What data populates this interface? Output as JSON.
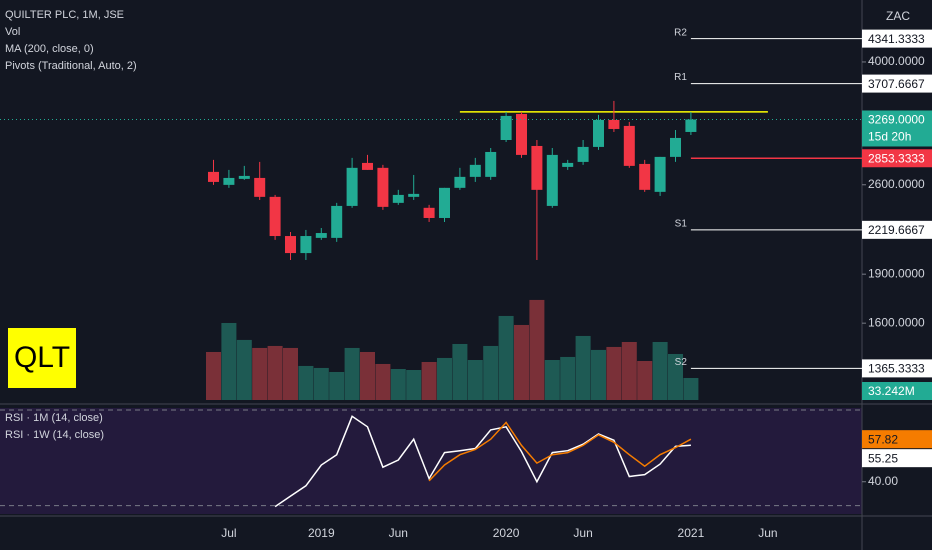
{
  "chart_data": {
    "type": "candlestick",
    "title": "QUILTER PLC, 1M, JSE",
    "indicators": [
      "Vol",
      "MA (200, close, 0)",
      "Pivots (Traditional, Auto, 2)"
    ],
    "symbol_badge": "QLT",
    "currency": "ZAC",
    "categories": [
      null,
      "Jul",
      null,
      null,
      null,
      null,
      null,
      "2019",
      null,
      null,
      null,
      null,
      "Jun",
      null,
      null,
      null,
      null,
      null,
      null,
      "2020",
      null,
      null,
      null,
      null,
      "Jun",
      null,
      null,
      null,
      null,
      null,
      null,
      "2021",
      null,
      null,
      null,
      null,
      "Jun"
    ],
    "open": [
      2720,
      2599,
      2654,
      2663,
      2492,
      2172,
      2046,
      2158,
      2158,
      2414,
      2807,
      2759,
      2440,
      2492,
      2398,
      2314,
      2572,
      2673,
      2673,
      3042,
      3333,
      2979,
      2414,
      2768,
      2817,
      2969,
      3264,
      3196,
      2797,
      2536,
      2867,
      3129,
      null,
      null,
      null,
      null,
      null
    ],
    "high": [
      2837,
      2739,
      2778,
      2817,
      2509,
      2203,
      2219,
      2234,
      2440,
      2857,
      2887,
      2788,
      2554,
      2691,
      2423,
      2572,
      2759,
      2857,
      2958,
      3357,
      3357,
      3042,
      2958,
      2837,
      3042,
      3322,
      3489,
      3241,
      2837,
      2867,
      3151,
      3357,
      null,
      null,
      null,
      null,
      null
    ],
    "low": [
      2599,
      2572,
      2645,
      2465,
      2143,
      1997,
      1997,
      2143,
      2128,
      2398,
      2739,
      2381,
      2423,
      2465,
      2282,
      2282,
      2554,
      2626,
      2645,
      3021,
      2857,
      1997,
      2398,
      2739,
      2788,
      2938,
      3129,
      2759,
      2536,
      2500,
      2817,
      3096,
      null,
      null,
      null,
      null,
      null
    ],
    "close": [
      2626,
      2663,
      2682,
      2492,
      2172,
      2046,
      2172,
      2195,
      2414,
      2759,
      2739,
      2406,
      2509,
      2518,
      2314,
      2572,
      2673,
      2788,
      2917,
      3310,
      2887,
      2554,
      2887,
      2807,
      2969,
      3264,
      3162,
      2778,
      2554,
      2867,
      3064,
      3269,
      null,
      null,
      null,
      null,
      null
    ],
    "up_color": "#22ab94",
    "down_color": "#f23645",
    "log_scale": true,
    "ylim": [
      1222,
      4971
    ],
    "yticks": [
      {
        "value": 4000,
        "label": "4000.0000"
      },
      {
        "value": 2600,
        "label": "2600.0000"
      },
      {
        "value": 1900,
        "label": "1900.0000"
      },
      {
        "value": 1600,
        "label": "1600.0000"
      }
    ],
    "last_price": {
      "value": 3269,
      "label": "3269.0000"
    },
    "countdown": "15d 20h",
    "pivots": [
      {
        "name": "R2",
        "value": 4341.3333
      },
      {
        "name": "R1",
        "value": 3707.6667
      },
      {
        "name": "S1",
        "value": 2219.6667
      },
      {
        "name": "S2",
        "value": 1365.3333
      }
    ],
    "pivot_color": "#ffffff",
    "trend_line": {
      "value": 3357,
      "color": "#ffff00",
      "start": 16,
      "end": 36
    },
    "level_line": {
      "value": 2853.3333,
      "color": "#f23645"
    },
    "volume": [
      72.5,
      116.3,
      90.7,
      78.6,
      81.6,
      78.6,
      51.4,
      48.4,
      42.3,
      78.6,
      72.5,
      54.4,
      46.8,
      45.3,
      57.4,
      63.5,
      84.6,
      60.4,
      81.6,
      126.9,
      113.3,
      151.1,
      60.4,
      65.0,
      96.7,
      75.6,
      80.1,
      87.6,
      58.9,
      87.6,
      69.5,
      33.242,
      null,
      null,
      null,
      null,
      null
    ],
    "vlim": [
      0,
      604
    ],
    "volume_label": {
      "value": 33.242,
      "label": "33.242M"
    },
    "volume_up_color": "#1e5a54",
    "volume_down_color": "#7a3038",
    "rsi": {
      "ylim": [
        26.5,
        71.7
      ],
      "yticks": [
        {
          "value": 40,
          "label": "40.00"
        }
      ],
      "bands": [
        30,
        70
      ],
      "series": [
        {
          "name": "RSI · 1M (14, close)",
          "color": "#ffffff",
          "values": [
            null,
            null,
            null,
            null,
            29.6,
            34.0,
            38.3,
            47.0,
            51.3,
            67.4,
            63.0,
            46.1,
            49.1,
            57.8,
            41.3,
            52.2,
            53.0,
            53.9,
            61.7,
            63.0,
            52.6,
            40.0,
            52.2,
            53.0,
            55.7,
            60.0,
            57.4,
            42.2,
            43.0,
            47.4,
            54.8,
            55.25,
            null,
            null,
            null,
            null,
            null
          ]
        },
        {
          "name": "RSI · 1W (14, close)",
          "color": "#f57c00",
          "values": [
            null,
            null,
            null,
            null,
            null,
            null,
            null,
            null,
            null,
            null,
            null,
            null,
            null,
            null,
            40.4,
            47.0,
            51.3,
            53.5,
            57.8,
            64.8,
            55.2,
            47.8,
            51.3,
            52.2,
            55.2,
            59.6,
            56.5,
            51.3,
            46.5,
            51.3,
            54.3,
            57.82,
            null,
            null,
            null,
            null,
            null
          ]
        }
      ]
    }
  }
}
